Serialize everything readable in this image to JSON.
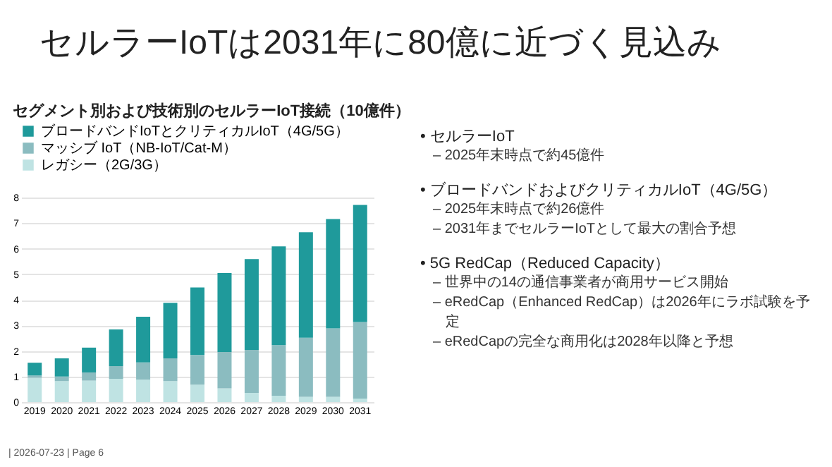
{
  "chart_data": {
    "type": "bar",
    "stacked": true,
    "title": "セルラーIoTは2031年に80億に近づく見込み",
    "subtitle": "セグメント別および技術別のセルラーIoT接続（10億件）",
    "categories": [
      "2019",
      "2020",
      "2021",
      "2022",
      "2023",
      "2024",
      "2025",
      "2026",
      "2027",
      "2028",
      "2029",
      "2030",
      "2031"
    ],
    "series": [
      {
        "name": "レガシー（2G/3G）",
        "color": "#bfe3e3",
        "values": [
          0.95,
          0.82,
          0.84,
          0.91,
          0.88,
          0.82,
          0.68,
          0.54,
          0.36,
          0.25,
          0.21,
          0.21,
          0.14
        ]
      },
      {
        "name": "マッシブ IoT（NB-IoT/Cat-M）",
        "color": "#8bbcc0",
        "values": [
          0.09,
          0.18,
          0.32,
          0.5,
          0.67,
          0.89,
          1.16,
          1.42,
          1.68,
          1.98,
          2.31,
          2.67,
          2.99
        ]
      },
      {
        "name": "ブロードバンドIoTとクリティカルIoT（4G/5G）",
        "color": "#1f9a9b",
        "values": [
          0.5,
          0.71,
          0.97,
          1.43,
          1.79,
          2.17,
          2.64,
          3.09,
          3.55,
          3.86,
          4.12,
          4.28,
          4.58
        ]
      }
    ],
    "ylim": [
      0,
      8
    ],
    "yticks": [
      0,
      1,
      2,
      3,
      4,
      5,
      6,
      7,
      8
    ],
    "grid": "y",
    "legend": "top",
    "annotations": [
      "• セルラーIoT",
      "– 2025年末時点で約45億件",
      "• ブロードバンドおよびクリティカルIoT（4G/5G）",
      "– 2025年末時点で約26億件",
      "– 2031年までセルラーIoTとして最大の割合予想",
      "• 5G RedCap（Reduced Capacity）",
      "– 世界中の14の通信事業者が商用サービス開始",
      "– eRedCap（Enhanced RedCap）は2026年にラボ試験を予定",
      "– eRedCapの完全な商用化は2028年以降と予想",
      "| 2026-07-23 | Page 6"
    ]
  }
}
